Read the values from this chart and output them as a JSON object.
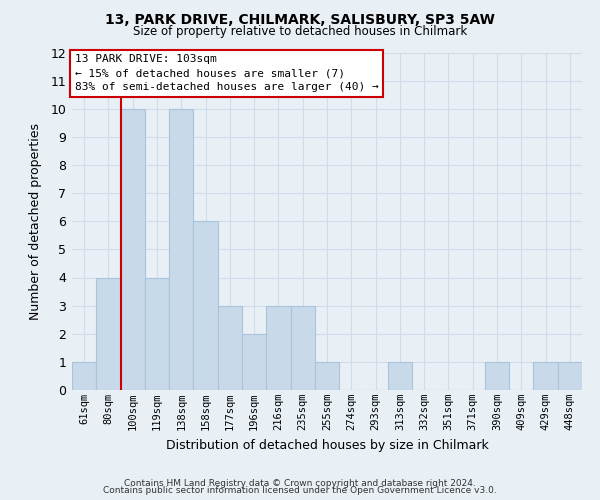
{
  "title": "13, PARK DRIVE, CHILMARK, SALISBURY, SP3 5AW",
  "subtitle": "Size of property relative to detached houses in Chilmark",
  "xlabel": "Distribution of detached houses by size in Chilmark",
  "ylabel": "Number of detached properties",
  "bin_labels": [
    "61sqm",
    "80sqm",
    "100sqm",
    "119sqm",
    "138sqm",
    "158sqm",
    "177sqm",
    "196sqm",
    "216sqm",
    "235sqm",
    "255sqm",
    "274sqm",
    "293sqm",
    "313sqm",
    "332sqm",
    "351sqm",
    "371sqm",
    "390sqm",
    "409sqm",
    "429sqm",
    "448sqm"
  ],
  "bar_heights": [
    1,
    4,
    10,
    4,
    10,
    6,
    3,
    2,
    3,
    3,
    1,
    0,
    0,
    1,
    0,
    0,
    0,
    1,
    0,
    1,
    1
  ],
  "bar_color": "#c8d9ea",
  "bar_edge_color": "#aac4dc",
  "highlight_bar_index": 2,
  "highlight_color": "#cc0000",
  "ylim": [
    0,
    12
  ],
  "yticks": [
    0,
    1,
    2,
    3,
    4,
    5,
    6,
    7,
    8,
    9,
    10,
    11,
    12
  ],
  "annotation_text": "13 PARK DRIVE: 103sqm\n← 15% of detached houses are smaller (7)\n83% of semi-detached houses are larger (40) →",
  "footer_line1": "Contains HM Land Registry data © Crown copyright and database right 2024.",
  "footer_line2": "Contains public sector information licensed under the Open Government Licence v3.0.",
  "grid_color": "#d0dce8",
  "background_color": "#e8eff5"
}
